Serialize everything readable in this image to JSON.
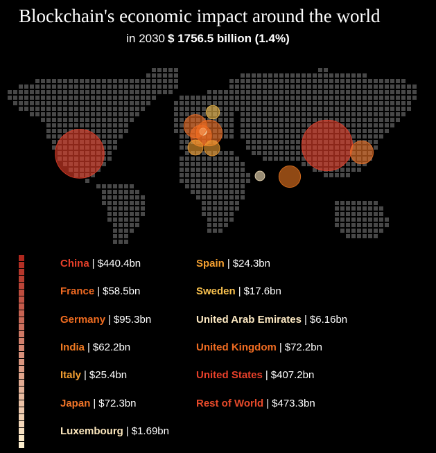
{
  "title": "Blockchain's economic impact around the world",
  "subtitle": {
    "prefix": "in 2030",
    "total": "$ 1756.5 billion (1.4%)"
  },
  "separator": "|",
  "countries": [
    {
      "name": "China",
      "value": 440.4,
      "value_label": "$440.4bn",
      "color": "#e8402a"
    },
    {
      "name": "France",
      "value": 58.5,
      "value_label": "$58.5bn",
      "color": "#f06a22"
    },
    {
      "name": "Germany",
      "value": 95.3,
      "value_label": "$95.3bn",
      "color": "#f06c20"
    },
    {
      "name": "India",
      "value": 62.2,
      "value_label": "$62.2bn",
      "color": "#f07a22"
    },
    {
      "name": "Italy",
      "value": 25.4,
      "value_label": "$25.4bn",
      "color": "#f4a032"
    },
    {
      "name": "Japan",
      "value": 72.3,
      "value_label": "$72.3bn",
      "color": "#f07428"
    },
    {
      "name": "Luxembourg",
      "value": 1.69,
      "value_label": "$1.69bn",
      "color": "#fbe6bc"
    },
    {
      "name": "Spain",
      "value": 24.3,
      "value_label": "$24.3bn",
      "color": "#f5a030"
    },
    {
      "name": "Sweden",
      "value": 17.6,
      "value_label": "$17.6bn",
      "color": "#f7c04e"
    },
    {
      "name": "United Arab Emirates",
      "value": 6.16,
      "value_label": "$6.16bn",
      "color": "#fde9c2"
    },
    {
      "name": "United Kingdom",
      "value": 72.2,
      "value_label": "$72.2bn",
      "color": "#f06c22"
    },
    {
      "name": "United States",
      "value": 407.2,
      "value_label": "$407.2bn",
      "color": "#e8402a"
    },
    {
      "name": "Rest of World",
      "value": 473.3,
      "value_label": "$473.3bn",
      "color": "#e84a2a"
    }
  ]
}
